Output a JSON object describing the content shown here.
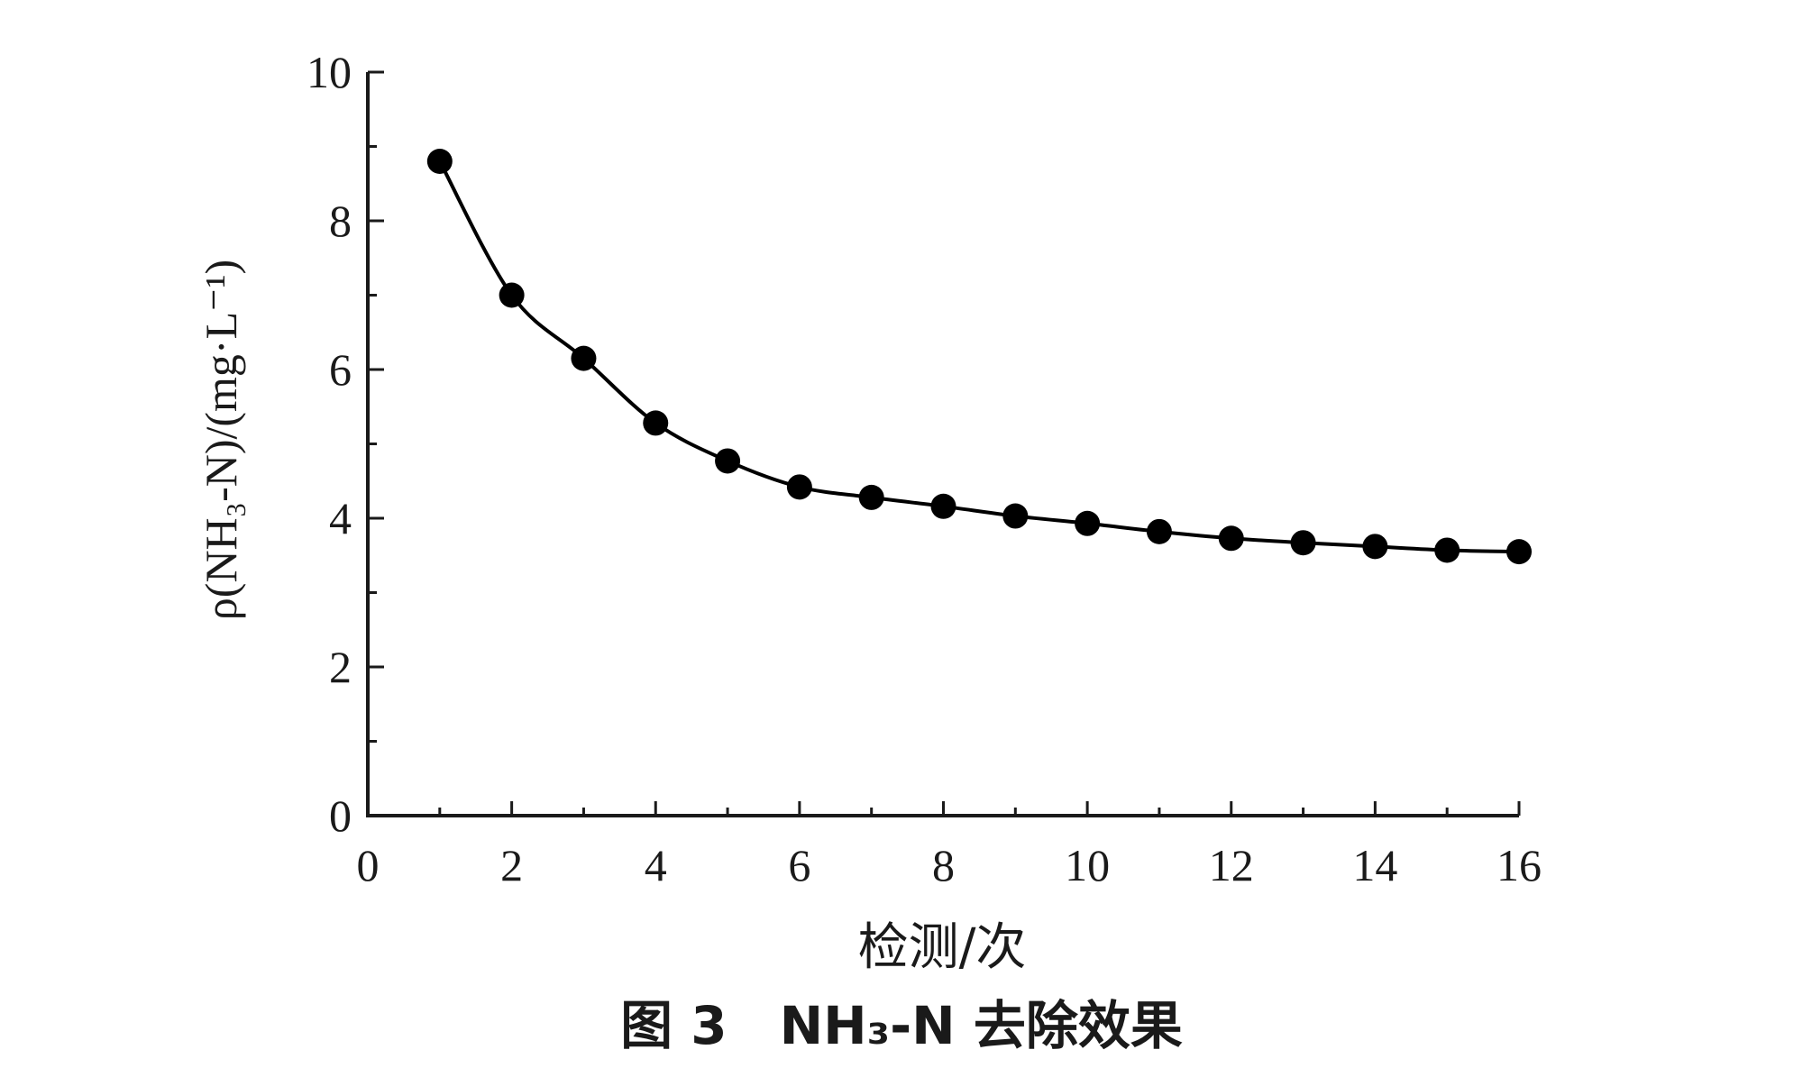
{
  "chart_data": {
    "type": "line",
    "x": [
      1,
      2,
      3,
      4,
      5,
      6,
      7,
      8,
      9,
      10,
      11,
      12,
      13,
      14,
      15,
      16
    ],
    "series": [
      {
        "values": [
          8.8,
          7.0,
          6.15,
          5.28,
          4.77,
          4.42,
          4.28,
          4.16,
          4.03,
          3.93,
          3.82,
          3.73,
          3.67,
          3.62,
          3.57,
          3.55
        ]
      }
    ],
    "xlabel": "检测/次",
    "ylabel": "ρ(NH₃-N)/(mg·L⁻¹)",
    "caption": "图 3　NH₃-N 去除效果",
    "xlim": [
      0,
      16
    ],
    "ylim": [
      0,
      10
    ],
    "xticks": [
      "0",
      "2",
      "4",
      "6",
      "8",
      "10",
      "12",
      "14",
      "16"
    ],
    "yticks": [
      "0",
      "2",
      "4",
      "6",
      "8",
      "10"
    ],
    "grid": false,
    "marker": "filled-circle",
    "line_color": "#000000"
  }
}
